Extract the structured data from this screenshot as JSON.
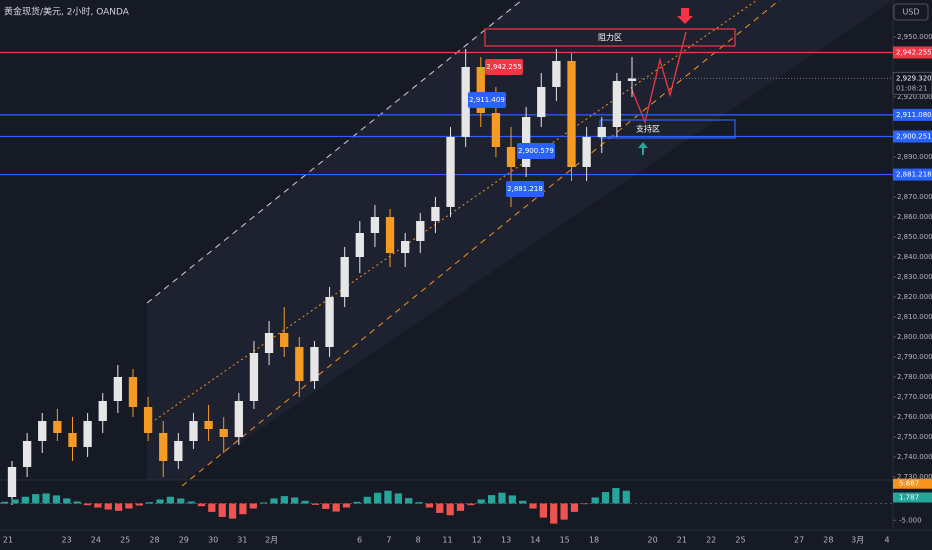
{
  "chart_data": {
    "type": "candlestick",
    "title": "黄金现货/美元, 2小时, OANDA",
    "currency": "USD",
    "categories": [
      "21",
      null,
      "23",
      "24",
      "25",
      "28",
      "29",
      "30",
      "31",
      "2月",
      null,
      null,
      "6",
      "7",
      "8",
      "11",
      "12",
      "13",
      "14",
      "15",
      "18",
      null,
      "20",
      "21",
      "22",
      "25",
      null,
      "27",
      "28",
      "3月",
      "4"
    ],
    "candles": [
      [
        2720,
        2738,
        2716,
        2735
      ],
      [
        2735,
        2752,
        2730,
        2748
      ],
      [
        2748,
        2762,
        2742,
        2758
      ],
      [
        2758,
        2764,
        2748,
        2752
      ],
      [
        2752,
        2760,
        2738,
        2745
      ],
      [
        2745,
        2762,
        2740,
        2758
      ],
      [
        2758,
        2772,
        2752,
        2768
      ],
      [
        2768,
        2786,
        2762,
        2780
      ],
      [
        2780,
        2784,
        2760,
        2765
      ],
      [
        2765,
        2770,
        2748,
        2752
      ],
      [
        2752,
        2758,
        2730,
        2738
      ],
      [
        2738,
        2752,
        2734,
        2748
      ],
      [
        2748,
        2762,
        2744,
        2758
      ],
      [
        2758,
        2766,
        2748,
        2754
      ],
      [
        2754,
        2760,
        2742,
        2750
      ],
      [
        2750,
        2772,
        2746,
        2768
      ],
      [
        2768,
        2798,
        2764,
        2792
      ],
      [
        2792,
        2808,
        2786,
        2802
      ],
      [
        2802,
        2815,
        2790,
        2795
      ],
      [
        2795,
        2800,
        2770,
        2778
      ],
      [
        2778,
        2798,
        2774,
        2795
      ],
      [
        2795,
        2825,
        2790,
        2820
      ],
      [
        2820,
        2845,
        2815,
        2840
      ],
      [
        2840,
        2858,
        2832,
        2852
      ],
      [
        2852,
        2866,
        2845,
        2860
      ],
      [
        2860,
        2864,
        2835,
        2842
      ],
      [
        2842,
        2852,
        2835,
        2848
      ],
      [
        2848,
        2862,
        2842,
        2858
      ],
      [
        2858,
        2870,
        2852,
        2865
      ],
      [
        2865,
        2905,
        2860,
        2900
      ],
      [
        2900,
        2944,
        2895,
        2935
      ],
      [
        2935,
        2940,
        2905,
        2912
      ],
      [
        2912,
        2925,
        2890,
        2895
      ],
      [
        2895,
        2905,
        2865,
        2885
      ],
      [
        2885,
        2915,
        2880,
        2910
      ],
      [
        2910,
        2932,
        2905,
        2925
      ],
      [
        2925,
        2944,
        2918,
        2938
      ],
      [
        2938,
        2942,
        2878,
        2885
      ],
      [
        2885,
        2905,
        2878,
        2900
      ],
      [
        2900,
        2910,
        2892,
        2905
      ],
      [
        2905,
        2932,
        2900,
        2928
      ],
      [
        2928,
        2940,
        2920,
        2929.32
      ]
    ],
    "up_color": "#e6e6e6",
    "down_color": "#f59a23",
    "ylim": [
      2728.5,
      2968.5
    ],
    "yticks": [
      {
        "value": 2950,
        "label": "2,950.000"
      },
      {
        "value": 2920,
        "label": "2,920.000"
      },
      {
        "value": 2890,
        "label": "2,890.000"
      },
      {
        "value": 2870,
        "label": "2,870.000"
      },
      {
        "value": 2860,
        "label": "2,860.000"
      },
      {
        "value": 2850,
        "label": "2,850.000"
      },
      {
        "value": 2840,
        "label": "2,840.000"
      },
      {
        "value": 2830,
        "label": "2,830.000"
      },
      {
        "value": 2820,
        "label": "2,820.000"
      },
      {
        "value": 2810,
        "label": "2,810.000"
      },
      {
        "value": 2800,
        "label": "2,800.000"
      },
      {
        "value": 2790,
        "label": "2,790.000"
      },
      {
        "value": 2780,
        "label": "2,780.000"
      },
      {
        "value": 2770,
        "label": "2,770.000"
      },
      {
        "value": 2760,
        "label": "2,760.000"
      },
      {
        "value": 2750,
        "label": "2,750.000"
      },
      {
        "value": 2740,
        "label": "2,740.000"
      },
      {
        "value": 2730,
        "label": "2,730.000"
      }
    ],
    "levels": [
      {
        "value": 2942.255,
        "label": "2,942.255",
        "color": "#f23645"
      },
      {
        "value": 2911.08,
        "label": "2,911.080",
        "color": "#2962ff"
      },
      {
        "value": 2900.251,
        "label": "2,900.251",
        "color": "#2962ff"
      },
      {
        "value": 2881.218,
        "label": "2,881.218",
        "color": "#2962ff"
      }
    ],
    "callouts": [
      {
        "value": 2942.255,
        "label": "2,942.255",
        "color": "#f23645"
      },
      {
        "value": 2911.409,
        "label": "2,911.409",
        "color": "#2962ff"
      },
      {
        "value": 2900.579,
        "label": "2,900.579",
        "color": "#2962ff"
      },
      {
        "value": 2881.218,
        "label": "2,881.218",
        "color": "#2962ff"
      }
    ],
    "last_price": {
      "value": 2929.32,
      "label": "2,929.320",
      "countdown": "01:08:21"
    },
    "zones": [
      {
        "name": "阻力区",
        "top": 2954,
        "bottom": 2945.5,
        "color": "#f23645"
      },
      {
        "name": "支持区",
        "top": 2908.5,
        "bottom": 2899.5,
        "color": "#2962ff"
      }
    ],
    "macd": {
      "ylim": [
        -7,
        7
      ],
      "yticks": [
        {
          "value": -5,
          "label": "-5.000"
        }
      ],
      "histogram": [
        0.5,
        1.2,
        2,
        2.8,
        3,
        2.4,
        1.5,
        0.6,
        -0.5,
        -1.2,
        -1.8,
        -2.2,
        -1.5,
        -0.6,
        0.4,
        1.2,
        2,
        1.5,
        0.6,
        -0.8,
        -2.5,
        -4,
        -4.5,
        -3.2,
        -1.5,
        0.3,
        1.5,
        2.2,
        1.8,
        0.8,
        -0.4,
        -1.6,
        -2.4,
        -1.2,
        0.5,
        2,
        3.2,
        3.8,
        3,
        1.6,
        0.4,
        -1.2,
        -2.8,
        -3.5,
        -2.2,
        -0.5,
        1.2,
        2.5,
        3.2,
        2.4,
        0.8,
        -1.5,
        -4.2,
        -6,
        -4.8,
        -2.5,
        -0.2,
        1.8,
        3.4,
        4.6,
        3.8
      ],
      "pos_color": "#26a69a",
      "neg_color": "#ef5350",
      "macd": {
        "value": 5.887,
        "label": "5.887",
        "color": "#f7931a"
      },
      "signal": {
        "value": 1.787,
        "label": "1.787",
        "color": "#26a69a"
      }
    }
  }
}
